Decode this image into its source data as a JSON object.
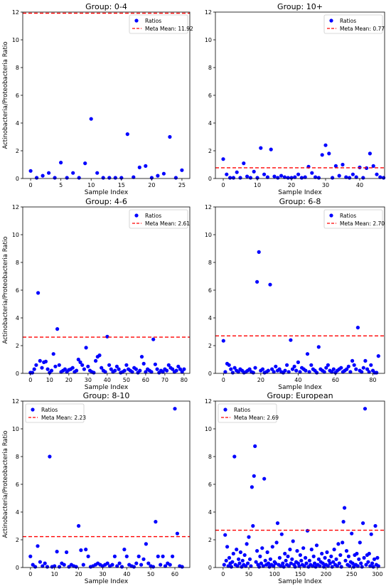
{
  "colors": {
    "points": "#0000ff",
    "meta_mean": "#ff0000",
    "axes": "#000000"
  },
  "chart_data": [
    {
      "type": "scatter",
      "title": "Group: 0-4",
      "xlabel": "Sample Index",
      "ylabel": "Actinobacteria/Proteobacteria Ratio",
      "xlim": [
        -1.3,
        26.3
      ],
      "ylim": [
        0,
        12
      ],
      "xticks": [
        0,
        5,
        10,
        15,
        20,
        25
      ],
      "yticks": [
        0,
        2,
        4,
        6,
        8,
        10,
        12
      ],
      "legend_position": "upper right",
      "series": [
        {
          "name": "Ratios",
          "y": [
            0.55,
            0.05,
            0.2,
            0.4,
            0.05,
            1.15,
            0.05,
            0.4,
            0.05,
            1.1,
            4.3,
            0.4,
            0.05,
            0.05,
            0.05,
            0.05,
            3.2,
            0.1,
            0.8,
            0.9,
            0.05,
            0.2,
            0.35,
            3.0,
            0.05,
            0.6
          ]
        }
      ],
      "meta_mean": {
        "label": "Meta Mean: 11.92",
        "value": 11.92
      }
    },
    {
      "type": "scatter",
      "title": "Group: 10+",
      "xlabel": "Sample Index",
      "ylabel": "",
      "xlim": [
        -2.3,
        47.3
      ],
      "ylim": [
        0,
        12
      ],
      "xticks": [
        0,
        10,
        20,
        30,
        40
      ],
      "yticks": [
        0,
        2,
        4,
        6,
        8,
        10,
        12
      ],
      "legend_position": "upper right",
      "series": [
        {
          "name": "Ratios",
          "y": [
            1.4,
            0.3,
            0.05,
            0.05,
            0.45,
            0.05,
            1.1,
            0.15,
            0.05,
            0.5,
            0.05,
            2.2,
            0.3,
            0.1,
            2.1,
            0.15,
            0.05,
            0.2,
            0.1,
            0.05,
            0.05,
            0.1,
            0.3,
            0.05,
            0.1,
            0.85,
            0.4,
            0.1,
            0.05,
            1.7,
            2.4,
            1.8,
            0.05,
            0.9,
            0.2,
            1.0,
            0.1,
            0.05,
            0.3,
            0.1,
            0.8,
            0.05,
            0.75,
            1.8,
            0.9,
            0.3,
            0.1,
            0.05
          ]
        }
      ],
      "meta_mean": {
        "label": "Meta Mean: 0.77",
        "value": 0.77
      }
    },
    {
      "type": "scatter",
      "title": "Group: 4-6",
      "xlabel": "Sample Index",
      "ylabel": "Actinobacteria/Proteobacteria Ratio",
      "xlim": [
        -4,
        83
      ],
      "ylim": [
        0,
        12
      ],
      "xticks": [
        0,
        10,
        20,
        30,
        40,
        50,
        60,
        70,
        80
      ],
      "yticks": [
        0,
        2,
        4,
        6,
        8,
        10,
        12
      ],
      "legend_position": "upper right",
      "series": [
        {
          "name": "Ratios",
          "y": [
            0.05,
            0.05,
            0.3,
            0.6,
            5.8,
            0.9,
            0.4,
            0.8,
            0.85,
            0.3,
            0.05,
            0.2,
            1.4,
            0.5,
            3.2,
            0.6,
            0.1,
            0.2,
            0.3,
            0.1,
            0.25,
            0.3,
            0.4,
            0.1,
            0.2,
            1.0,
            0.8,
            0.6,
            0.3,
            1.85,
            0.5,
            0.2,
            0.1,
            0.05,
            0.9,
            1.2,
            1.3,
            0.4,
            0.2,
            0.1,
            2.65,
            0.6,
            0.3,
            0.1,
            0.2,
            0.5,
            0.3,
            0.05,
            0.1,
            0.2,
            0.6,
            0.3,
            0.2,
            0.1,
            0.4,
            0.3,
            0.05,
            0.2,
            1.2,
            0.7,
            0.1,
            0.3,
            0.2,
            0.1,
            2.45,
            0.65,
            0.3,
            0.05,
            0.2,
            0.1,
            0.3,
            0.2,
            0.6,
            0.4,
            0.3,
            0.1,
            0.2,
            0.5,
            0.3,
            0.1,
            0.3
          ]
        }
      ],
      "meta_mean": {
        "label": "Meta Mean: 2.61",
        "value": 2.61
      }
    },
    {
      "type": "scatter",
      "title": "Group: 6-8",
      "xlabel": "Sample Index",
      "ylabel": "",
      "xlim": [
        -4.3,
        86.3
      ],
      "ylim": [
        0,
        12
      ],
      "xticks": [
        0,
        20,
        40,
        60,
        80
      ],
      "yticks": [
        0,
        2,
        4,
        6,
        8,
        10,
        12
      ],
      "legend_position": "upper right",
      "series": [
        {
          "name": "Ratios",
          "y": [
            2.35,
            0.1,
            0.7,
            0.6,
            0.3,
            0.05,
            0.4,
            0.2,
            0.1,
            0.3,
            0.2,
            0.05,
            0.1,
            0.2,
            0.3,
            0.1,
            0.05,
            0.4,
            6.6,
            8.75,
            0.2,
            0.3,
            0.05,
            0.1,
            0.2,
            6.4,
            0.3,
            0.1,
            0.5,
            0.2,
            0.3,
            0.1,
            0.05,
            0.2,
            0.6,
            0.1,
            2.4,
            0.3,
            0.5,
            0.2,
            0.8,
            0.1,
            0.4,
            0.3,
            0.2,
            1.4,
            0.1,
            0.6,
            0.3,
            0.2,
            0.05,
            1.9,
            0.3,
            0.2,
            0.1,
            0.4,
            0.6,
            0.2,
            0.1,
            0.3,
            0.05,
            0.2,
            0.3,
            0.4,
            0.1,
            0.2,
            0.3,
            0.5,
            0.1,
            0.9,
            0.6,
            0.3,
            3.3,
            0.2,
            0.1,
            0.4,
            0.9,
            0.3,
            0.1,
            0.6,
            0.2,
            0.05,
            0.05,
            1.25
          ]
        }
      ],
      "meta_mean": {
        "label": "Meta Mean: 2.70",
        "value": 2.7
      }
    },
    {
      "type": "scatter",
      "title": "Group: 8-10",
      "xlabel": "Sample Index",
      "ylabel": "Actinobacteria/Proteobacteria Ratio",
      "xlim": [
        -3.2,
        66.2
      ],
      "ylim": [
        0,
        12
      ],
      "xticks": [
        0,
        10,
        20,
        30,
        40,
        50,
        60
      ],
      "yticks": [
        0,
        2,
        4,
        6,
        8,
        10,
        12
      ],
      "legend_position": "upper left",
      "series": [
        {
          "name": "Ratios",
          "y": [
            0.8,
            0.2,
            0.05,
            1.55,
            0.4,
            0.1,
            0.3,
            0.05,
            8.0,
            0.05,
            0.1,
            1.15,
            0.05,
            0.3,
            0.2,
            1.1,
            0.05,
            0.2,
            0.1,
            0.05,
            3.0,
            1.25,
            0.2,
            1.3,
            0.8,
            0.05,
            0.1,
            0.2,
            0.3,
            0.2,
            0.1,
            0.2,
            0.3,
            0.1,
            0.2,
            0.8,
            0.1,
            0.3,
            0.05,
            1.3,
            0.8,
            0.2,
            0.1,
            0.05,
            0.3,
            0.8,
            0.2,
            0.6,
            1.7,
            0.3,
            0.1,
            0.05,
            3.3,
            0.8,
            0.2,
            0.8,
            0.1,
            0.3,
            0.2,
            0.8,
            11.45,
            2.45,
            0.1,
            0.05
          ]
        }
      ],
      "meta_mean": {
        "label": "Meta Mean: 2.23",
        "value": 2.23
      }
    },
    {
      "type": "scatter",
      "title": "Group: European",
      "xlabel": "Sample Index",
      "ylabel": "",
      "xlim": [
        -15,
        314
      ],
      "ylim": [
        0,
        12
      ],
      "xticks": [
        0,
        50,
        100,
        150,
        200,
        250,
        300
      ],
      "yticks": [
        0,
        2,
        4,
        6,
        8,
        10,
        12
      ],
      "legend_position": "upper left",
      "series": [
        {
          "name": "Ratios",
          "points": [
            [
              2,
              0.2
            ],
            [
              4,
              2.35
            ],
            [
              6,
              0.5
            ],
            [
              8,
              1.5
            ],
            [
              10,
              0.1
            ],
            [
              12,
              0.7
            ],
            [
              14,
              0.3
            ],
            [
              16,
              0.05
            ],
            [
              18,
              0.4
            ],
            [
              20,
              1.0
            ],
            [
              22,
              8.0
            ],
            [
              24,
              0.2
            ],
            [
              26,
              1.3
            ],
            [
              28,
              0.1
            ],
            [
              30,
              0.6
            ],
            [
              32,
              0.3
            ],
            [
              34,
              1.1
            ],
            [
              36,
              0.05
            ],
            [
              38,
              0.5
            ],
            [
              40,
              0.2
            ],
            [
              42,
              0.9
            ],
            [
              44,
              0.1
            ],
            [
              46,
              1.7
            ],
            [
              48,
              0.3
            ],
            [
              50,
              2.2
            ],
            [
              52,
              0.6
            ],
            [
              54,
              0.1
            ],
            [
              56,
              5.8
            ],
            [
              58,
              3.0
            ],
            [
              60,
              6.6
            ],
            [
              62,
              8.75
            ],
            [
              64,
              0.4
            ],
            [
              66,
              1.2
            ],
            [
              68,
              0.2
            ],
            [
              70,
              0.05
            ],
            [
              72,
              0.8
            ],
            [
              74,
              0.3
            ],
            [
              76,
              1.4
            ],
            [
              78,
              0.1
            ],
            [
              80,
              6.4
            ],
            [
              82,
              0.5
            ],
            [
              84,
              0.2
            ],
            [
              86,
              1.1
            ],
            [
              88,
              0.3
            ],
            [
              90,
              0.05
            ],
            [
              92,
              0.6
            ],
            [
              94,
              0.2
            ],
            [
              96,
              1.5
            ],
            [
              98,
              0.1
            ],
            [
              100,
              0.4
            ],
            [
              102,
              0.3
            ],
            [
              104,
              1.8
            ],
            [
              106,
              3.2
            ],
            [
              108,
              0.2
            ],
            [
              110,
              0.7
            ],
            [
              112,
              0.1
            ],
            [
              114,
              2.4
            ],
            [
              116,
              0.3
            ],
            [
              118,
              0.05
            ],
            [
              120,
              1.0
            ],
            [
              122,
              0.5
            ],
            [
              124,
              0.2
            ],
            [
              126,
              0.8
            ],
            [
              128,
              0.1
            ],
            [
              130,
              1.3
            ],
            [
              132,
              0.3
            ],
            [
              134,
              0.6
            ],
            [
              136,
              1.9
            ],
            [
              138,
              0.2
            ],
            [
              140,
              0.05
            ],
            [
              142,
              0.4
            ],
            [
              144,
              1.2
            ],
            [
              146,
              0.3
            ],
            [
              148,
              0.1
            ],
            [
              150,
              0.9
            ],
            [
              152,
              0.5
            ],
            [
              154,
              0.2
            ],
            [
              156,
              1.4
            ],
            [
              158,
              0.1
            ],
            [
              160,
              0.7
            ],
            [
              162,
              0.3
            ],
            [
              164,
              2.65
            ],
            [
              166,
              0.05
            ],
            [
              168,
              0.5
            ],
            [
              170,
              0.2
            ],
            [
              172,
              1.3
            ],
            [
              174,
              0.1
            ],
            [
              176,
              0.8
            ],
            [
              178,
              0.3
            ],
            [
              180,
              0.05
            ],
            [
              182,
              1.6
            ],
            [
              184,
              0.2
            ],
            [
              186,
              0.6
            ],
            [
              188,
              0.1
            ],
            [
              190,
              0.4
            ],
            [
              192,
              1.0
            ],
            [
              194,
              0.3
            ],
            [
              196,
              0.05
            ],
            [
              198,
              0.7
            ],
            [
              200,
              0.2
            ],
            [
              202,
              1.1
            ],
            [
              204,
              0.1
            ],
            [
              206,
              0.5
            ],
            [
              208,
              0.3
            ],
            [
              210,
              0.8
            ],
            [
              212,
              0.05
            ],
            [
              214,
              0.4
            ],
            [
              216,
              1.3
            ],
            [
              218,
              0.2
            ],
            [
              220,
              0.6
            ],
            [
              222,
              0.1
            ],
            [
              224,
              1.7
            ],
            [
              226,
              0.3
            ],
            [
              228,
              0.9
            ],
            [
              230,
              0.05
            ],
            [
              232,
              1.8
            ],
            [
              234,
              3.3
            ],
            [
              236,
              4.3
            ],
            [
              238,
              0.5
            ],
            [
              240,
              1.2
            ],
            [
              242,
              0.2
            ],
            [
              244,
              0.8
            ],
            [
              246,
              0.1
            ],
            [
              248,
              0.4
            ],
            [
              250,
              2.45
            ],
            [
              252,
              0.3
            ],
            [
              254,
              0.05
            ],
            [
              256,
              0.9
            ],
            [
              258,
              0.2
            ],
            [
              260,
              1.0
            ],
            [
              262,
              0.1
            ],
            [
              264,
              0.6
            ],
            [
              266,
              1.8
            ],
            [
              268,
              0.3
            ],
            [
              270,
              0.05
            ],
            [
              272,
              3.2
            ],
            [
              274,
              0.7
            ],
            [
              276,
              11.45
            ],
            [
              278,
              0.2
            ],
            [
              280,
              0.9
            ],
            [
              282,
              0.4
            ],
            [
              284,
              1.0
            ],
            [
              286,
              0.1
            ],
            [
              288,
              2.4
            ],
            [
              290,
              0.3
            ],
            [
              292,
              0.05
            ],
            [
              294,
              0.6
            ],
            [
              296,
              3.0
            ],
            [
              298,
              0.2
            ],
            [
              300,
              0.7
            ],
            [
              302,
              0.1
            ]
          ]
        }
      ],
      "meta_mean": {
        "label": "Meta Mean: 2.69",
        "value": 2.69
      }
    }
  ]
}
